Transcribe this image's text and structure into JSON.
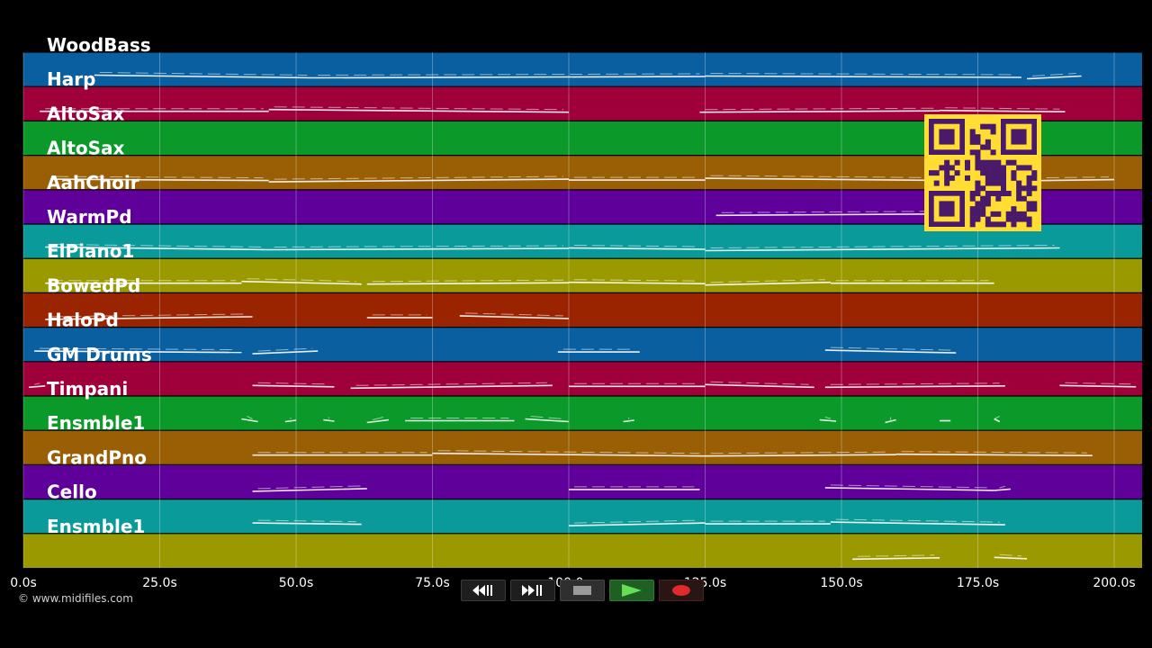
{
  "chart_data": {
    "type": "piano-roll",
    "x_unit": "seconds",
    "xlim": [
      0,
      204
    ],
    "x_ticks": [
      0,
      25,
      50,
      75,
      100,
      125,
      150,
      175,
      200
    ],
    "x_tick_labels": [
      "0.0s",
      "25.0s",
      "50.0s",
      "75.0s",
      "100.0s",
      "125.0s",
      "150.0s",
      "175.0s",
      "200.0s"
    ],
    "tracks": [
      {
        "name": "WoodBass",
        "color": "#0a5fa0",
        "segments": [
          [
            13,
            53
          ],
          [
            53,
            125
          ],
          [
            125,
            183
          ],
          [
            184,
            194
          ]
        ]
      },
      {
        "name": "Harp",
        "color": "#a0003a",
        "segments": [
          [
            3,
            45
          ],
          [
            45,
            100
          ],
          [
            124,
            168
          ],
          [
            168,
            191
          ]
        ]
      },
      {
        "name": "AltoSax",
        "color": "#0b9a2a",
        "segments": []
      },
      {
        "name": "AltoSax",
        "color": "#9a5e05",
        "segments": [
          [
            5,
            45
          ],
          [
            45,
            100
          ],
          [
            100,
            125
          ],
          [
            125,
            180
          ],
          [
            180,
            200
          ]
        ]
      },
      {
        "name": "AahChoir",
        "color": "#5f009a",
        "segments": [
          [
            127,
            168
          ]
        ]
      },
      {
        "name": "WarmPd",
        "color": "#0a9a9a",
        "segments": [
          [
            4,
            45
          ],
          [
            45,
            100
          ],
          [
            100,
            125
          ],
          [
            125,
            190
          ]
        ]
      },
      {
        "name": "ElPiano1",
        "color": "#9a9a00",
        "segments": [
          [
            4,
            40
          ],
          [
            40,
            62
          ],
          [
            63,
            100
          ],
          [
            100,
            125
          ],
          [
            125,
            148
          ],
          [
            148,
            178
          ]
        ]
      },
      {
        "name": "BowedPd",
        "color": "#9a2400",
        "segments": [
          [
            4,
            42
          ],
          [
            63,
            75
          ],
          [
            80,
            100
          ]
        ]
      },
      {
        "name": "HaloPd",
        "color": "#0a5fa0",
        "segments": [
          [
            2,
            40
          ],
          [
            42,
            54
          ],
          [
            98,
            113
          ],
          [
            147,
            171
          ]
        ]
      },
      {
        "name": "GM Drums",
        "color": "#a0003a",
        "segments": [
          [
            1,
            4
          ],
          [
            42,
            57
          ],
          [
            60,
            97
          ],
          [
            100,
            125
          ],
          [
            125,
            145
          ],
          [
            147,
            180
          ],
          [
            190,
            204
          ]
        ]
      },
      {
        "name": "Timpani",
        "color": "#0b9a2a",
        "segments": [
          [
            40,
            43
          ],
          [
            48,
            50
          ],
          [
            55,
            57
          ],
          [
            63,
            67
          ],
          [
            70,
            90
          ],
          [
            92,
            100
          ],
          [
            110,
            112
          ],
          [
            146,
            149
          ],
          [
            158,
            160
          ],
          [
            168,
            170
          ],
          [
            178,
            179
          ]
        ]
      },
      {
        "name": "Ensmble1",
        "color": "#9a5e05",
        "segments": [
          [
            42,
            75
          ],
          [
            75,
            125
          ],
          [
            125,
            160
          ],
          [
            160,
            196
          ]
        ]
      },
      {
        "name": "GrandPno",
        "color": "#5f009a",
        "segments": [
          [
            42,
            63
          ],
          [
            100,
            124
          ],
          [
            147,
            178
          ],
          [
            178,
            181
          ]
        ]
      },
      {
        "name": "Cello",
        "color": "#0a9a9a",
        "segments": [
          [
            42,
            62
          ],
          [
            100,
            125
          ],
          [
            125,
            148
          ],
          [
            148,
            180
          ]
        ]
      },
      {
        "name": "Ensmble1",
        "color": "#9a9a00",
        "segments": [
          [
            152,
            168
          ],
          [
            178,
            184
          ]
        ]
      }
    ]
  },
  "footer": {
    "copyright": "© www.midifiles.com"
  },
  "transport": {
    "rewind_icon": "rewind-icon",
    "fast_forward_icon": "fast-forward-icon",
    "stop_icon": "stop-icon",
    "play_icon": "play-icon",
    "record_icon": "record-icon"
  },
  "qr": {
    "colors": {
      "light": "#ffdd33",
      "dark": "#4a1a6a"
    }
  }
}
